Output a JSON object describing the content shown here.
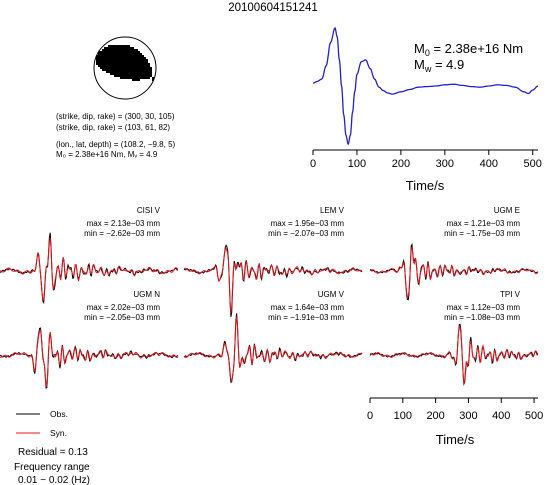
{
  "figure": {
    "title": "20100604151241"
  },
  "mechanism": {
    "nodal_planes": [
      "(strike, dip, rake) = (300, 30, 105)",
      "(strike, dip, rake) = (103, 61, 82)"
    ],
    "location": "(lon., lat, depth) = (108.2, −9.8, 5)",
    "moment_line": "M₀ = 2.38e+16 Nm, Mᵥ = 4.9",
    "plane1": {
      "strike": 300,
      "dip": 30,
      "rake": 105
    },
    "plane2": {
      "strike": 103,
      "dip": 61,
      "rake": 82
    },
    "colors": {
      "compression": "#000000",
      "dilatation": "#ffffff",
      "outline": "#000000"
    }
  },
  "stf": {
    "m0_label": "M",
    "m0_sub": "0",
    "m0_value": " = 2.38e+16 Nm",
    "mw_label": "M",
    "mw_sub": "w",
    "mw_value": " = 4.9",
    "color": "#2020d0"
  },
  "legend": {
    "obs": "Obs.",
    "syn": "Syn.",
    "obs_color": "#000000",
    "syn_color": "#e8141c"
  },
  "summary": {
    "residual": "Residual = 0.13",
    "freq_title": "Frequency range",
    "freq_range": "0.01 − 0.02 (Hz)"
  },
  "chart_data": [
    {
      "type": "line",
      "id": "source-time-function",
      "xlabel": "Time/s",
      "ylabel": "",
      "xlim": [
        0,
        512
      ],
      "xticks": [
        0,
        100,
        200,
        300,
        400,
        500
      ],
      "grid": false,
      "series": [
        {
          "x": [
            0,
            10,
            20,
            30,
            40,
            50,
            55,
            60,
            65,
            70,
            75,
            80,
            85,
            90,
            95,
            100,
            110,
            120,
            130,
            140,
            150,
            160,
            170,
            180,
            200,
            220,
            240,
            260,
            280,
            300,
            320,
            340,
            360,
            380,
            400,
            420,
            440,
            460,
            480,
            490,
            500,
            512
          ],
          "y": [
            0.05,
            0.08,
            0.12,
            0.35,
            0.75,
            1.0,
            0.85,
            0.45,
            0.0,
            -0.5,
            -0.85,
            -1.0,
            -0.85,
            -0.45,
            -0.1,
            0.2,
            0.42,
            0.45,
            0.3,
            0.12,
            -0.02,
            -0.08,
            -0.12,
            -0.14,
            -0.1,
            -0.06,
            -0.02,
            -0.01,
            0.0,
            0.02,
            0.03,
            0.01,
            -0.01,
            -0.02,
            0.0,
            0.02,
            0.01,
            -0.02,
            -0.1,
            -0.13,
            -0.07,
            0.0
          ]
        }
      ]
    },
    {
      "type": "line",
      "id": "waveform-fits",
      "xlabel": "Time/s",
      "ylabel": "",
      "xlim": [
        0,
        512
      ],
      "xticks": [
        0,
        100,
        200,
        300,
        400,
        500
      ],
      "grid": false,
      "legend": "bottom-left",
      "series_names": [
        "Obs.",
        "Syn."
      ],
      "panels": [
        {
          "label": "CISI V",
          "max": "max = 2.13e−03 mm",
          "min": "min = −2.62e−03 mm",
          "arrival": 0.26,
          "pol": 1,
          "scale": 1.0,
          "seed": 1
        },
        {
          "label": "LEM V",
          "max": "max = 1.95e−03 mm",
          "min": "min = −2.07e−03 mm",
          "arrival": 0.25,
          "pol": -1,
          "scale": 0.95,
          "seed": 2
        },
        {
          "label": "UGM E",
          "max": "max = 1.21e−03 mm",
          "min": "min = −1.75e−03 mm",
          "arrival": 0.24,
          "pol": 1,
          "scale": 0.8,
          "seed": 3
        },
        {
          "label": "UGM N",
          "max": "max = 2.02e−03 mm",
          "min": "min = −2.05e−03 mm",
          "arrival": 0.24,
          "pol": -1,
          "scale": 0.95,
          "seed": 4
        },
        {
          "label": "UGM V",
          "max": "max = 1.64e−03 mm",
          "min": "min = −1.91e−03 mm",
          "arrival": 0.28,
          "pol": 1,
          "scale": 0.9,
          "seed": 5
        },
        {
          "label": "TPI V",
          "max": "max = 1.12e−03 mm",
          "min": "min = −1.08e−03 mm",
          "arrival": 0.55,
          "pol": -1,
          "scale": 0.85,
          "seed": 6
        }
      ]
    }
  ]
}
